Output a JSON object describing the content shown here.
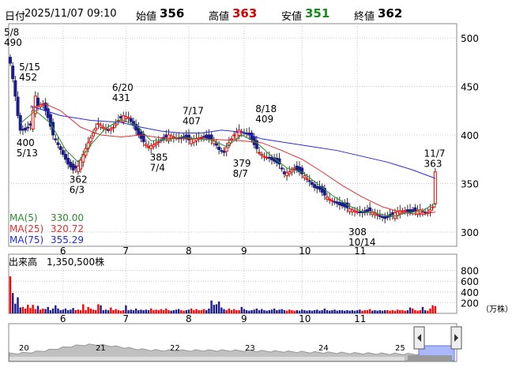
{
  "header": {
    "date_label": "日付",
    "datetime": "2025/11/07 09:10",
    "open_label": "始値",
    "open": "356",
    "high_label": "高値",
    "high": "363",
    "low_label": "安値",
    "low": "351",
    "close_label": "終値",
    "close": "362"
  },
  "legend": {
    "ma5_label": "MA(5)",
    "ma5_value": "330.00",
    "ma25_label": "MA(25)",
    "ma25_value": "320.72",
    "ma75_label": "MA(75)",
    "ma75_value": "355.29"
  },
  "volume_title": "出来高　1,350,500株",
  "volume_unit": "（万株）",
  "colors": {
    "up": "#ff0000",
    "down": "#1c1c8c",
    "ma5": "#2e8b2e",
    "ma25": "#e03030",
    "ma75": "#2a2ae0",
    "grid": "#c8c8c8",
    "nav_fill": "#c0c0c0"
  },
  "chart_data": {
    "type": "candlestick",
    "price_axis": {
      "ticks": [
        300,
        350,
        400,
        450,
        500
      ],
      "ylim": [
        285,
        510
      ]
    },
    "volume_axis": {
      "ticks": [
        200,
        400,
        600,
        800
      ],
      "unit": "（万株）"
    },
    "month_labels": [
      "6",
      "7",
      "8",
      "9",
      "10",
      "11"
    ],
    "annotations": [
      {
        "label": "5/8",
        "value": "490"
      },
      {
        "label": "5/15",
        "value": "452"
      },
      {
        "label": "5/13",
        "value": "400"
      },
      {
        "label": "6/3",
        "value": "362"
      },
      {
        "label": "6/20",
        "value": "431"
      },
      {
        "label": "7/4",
        "value": "385"
      },
      {
        "label": "7/17",
        "value": "407"
      },
      {
        "label": "8/7",
        "value": "379"
      },
      {
        "label": "8/18",
        "value": "409"
      },
      {
        "label": "10/14",
        "value": "308"
      },
      {
        "label": "11/7",
        "value": "363"
      }
    ],
    "close_path": [
      [
        0,
        474
      ],
      [
        1,
        458
      ],
      [
        2,
        440
      ],
      [
        3,
        420
      ],
      [
        4,
        405
      ],
      [
        6,
        405
      ],
      [
        8,
        410
      ],
      [
        9,
        425
      ],
      [
        10,
        440
      ],
      [
        11,
        430
      ],
      [
        13,
        432
      ],
      [
        15,
        418
      ],
      [
        17,
        400
      ],
      [
        19,
        390
      ],
      [
        21,
        380
      ],
      [
        23,
        370
      ],
      [
        25,
        364
      ],
      [
        27,
        368
      ],
      [
        29,
        380
      ],
      [
        31,
        392
      ],
      [
        33,
        402
      ],
      [
        35,
        412
      ],
      [
        37,
        408
      ],
      [
        39,
        405
      ],
      [
        41,
        408
      ],
      [
        43,
        415
      ],
      [
        45,
        420
      ],
      [
        47,
        418
      ],
      [
        49,
        410
      ],
      [
        51,
        400
      ],
      [
        53,
        393
      ],
      [
        55,
        388
      ],
      [
        57,
        390
      ],
      [
        59,
        393
      ],
      [
        61,
        396
      ],
      [
        63,
        400
      ],
      [
        65,
        398
      ],
      [
        67,
        396
      ],
      [
        69,
        397
      ],
      [
        71,
        395
      ],
      [
        73,
        396
      ],
      [
        75,
        397
      ],
      [
        77,
        398
      ],
      [
        79,
        396
      ],
      [
        81,
        394
      ],
      [
        83,
        385
      ],
      [
        85,
        382
      ],
      [
        87,
        392
      ],
      [
        89,
        400
      ],
      [
        91,
        405
      ],
      [
        93,
        402
      ],
      [
        95,
        400
      ],
      [
        97,
        390
      ],
      [
        99,
        382
      ],
      [
        101,
        378
      ],
      [
        103,
        376
      ],
      [
        105,
        373
      ],
      [
        107,
        370
      ],
      [
        109,
        360
      ],
      [
        111,
        362
      ],
      [
        113,
        366
      ],
      [
        115,
        362
      ],
      [
        117,
        358
      ],
      [
        119,
        352
      ],
      [
        121,
        346
      ],
      [
        123,
        344
      ],
      [
        125,
        338
      ],
      [
        127,
        334
      ],
      [
        129,
        331
      ],
      [
        131,
        328
      ],
      [
        133,
        326
      ],
      [
        135,
        324
      ],
      [
        137,
        322
      ],
      [
        139,
        320
      ],
      [
        141,
        320
      ],
      [
        143,
        322
      ],
      [
        145,
        320
      ],
      [
        147,
        316
      ],
      [
        149,
        314
      ],
      [
        151,
        316
      ],
      [
        153,
        320
      ],
      [
        155,
        322
      ],
      [
        157,
        322
      ],
      [
        159,
        320
      ],
      [
        161,
        322
      ],
      [
        163,
        323
      ],
      [
        165,
        320
      ],
      [
        166,
        320
      ],
      [
        168,
        326
      ],
      [
        169,
        362
      ]
    ],
    "ma5": [
      [
        4,
        412
      ],
      [
        10,
        425
      ],
      [
        16,
        412
      ],
      [
        22,
        385
      ],
      [
        27,
        372
      ],
      [
        32,
        390
      ],
      [
        38,
        407
      ],
      [
        44,
        416
      ],
      [
        50,
        410
      ],
      [
        56,
        394
      ],
      [
        62,
        395
      ],
      [
        68,
        398
      ],
      [
        74,
        396
      ],
      [
        80,
        395
      ],
      [
        86,
        388
      ],
      [
        92,
        400
      ],
      [
        98,
        392
      ],
      [
        104,
        378
      ],
      [
        110,
        366
      ],
      [
        116,
        362
      ],
      [
        122,
        350
      ],
      [
        128,
        338
      ],
      [
        134,
        328
      ],
      [
        140,
        321
      ],
      [
        146,
        319
      ],
      [
        152,
        316
      ],
      [
        158,
        320
      ],
      [
        164,
        322
      ],
      [
        169,
        330
      ]
    ],
    "ma25": [
      [
        8,
        428
      ],
      [
        14,
        432
      ],
      [
        20,
        425
      ],
      [
        28,
        408
      ],
      [
        36,
        400
      ],
      [
        44,
        398
      ],
      [
        52,
        400
      ],
      [
        60,
        397
      ],
      [
        68,
        396
      ],
      [
        76,
        396
      ],
      [
        84,
        395
      ],
      [
        92,
        394
      ],
      [
        100,
        392
      ],
      [
        108,
        384
      ],
      [
        116,
        375
      ],
      [
        124,
        362
      ],
      [
        132,
        348
      ],
      [
        140,
        336
      ],
      [
        148,
        326
      ],
      [
        156,
        320
      ],
      [
        164,
        318
      ],
      [
        169,
        320.72
      ]
    ],
    "ma75": [
      [
        8,
        430
      ],
      [
        20,
        420
      ],
      [
        32,
        415
      ],
      [
        44,
        413
      ],
      [
        52,
        408
      ],
      [
        60,
        404
      ],
      [
        68,
        402
      ],
      [
        76,
        402
      ],
      [
        84,
        405
      ],
      [
        92,
        403
      ],
      [
        100,
        396
      ],
      [
        110,
        392
      ],
      [
        120,
        388
      ],
      [
        130,
        384
      ],
      [
        140,
        378
      ],
      [
        150,
        372
      ],
      [
        160,
        364
      ],
      [
        169,
        355.29
      ]
    ],
    "volume": [
      [
        0,
        690
      ],
      [
        1,
        380
      ],
      [
        2,
        180
      ],
      [
        3,
        300
      ],
      [
        4,
        110
      ],
      [
        5,
        120
      ],
      [
        6,
        90
      ],
      [
        7,
        160
      ],
      [
        8,
        100
      ],
      [
        9,
        160
      ],
      [
        10,
        80
      ],
      [
        11,
        140
      ],
      [
        12,
        70
      ],
      [
        13,
        90
      ],
      [
        14,
        80
      ],
      [
        15,
        120
      ],
      [
        16,
        60
      ],
      [
        17,
        90
      ],
      [
        18,
        150
      ],
      [
        19,
        90
      ],
      [
        20,
        60
      ],
      [
        21,
        70
      ],
      [
        22,
        90
      ],
      [
        23,
        60
      ],
      [
        24,
        70
      ],
      [
        25,
        100
      ],
      [
        26,
        60
      ],
      [
        27,
        70
      ],
      [
        28,
        60
      ],
      [
        29,
        170
      ],
      [
        30,
        60
      ],
      [
        31,
        120
      ],
      [
        32,
        90
      ],
      [
        33,
        70
      ],
      [
        34,
        60
      ],
      [
        35,
        170
      ],
      [
        36,
        150
      ],
      [
        37,
        60
      ],
      [
        38,
        70
      ],
      [
        39,
        60
      ],
      [
        40,
        110
      ],
      [
        41,
        60
      ],
      [
        42,
        80
      ],
      [
        43,
        60
      ],
      [
        44,
        50
      ],
      [
        45,
        60
      ],
      [
        46,
        150
      ],
      [
        47,
        60
      ],
      [
        48,
        70
      ],
      [
        49,
        60
      ],
      [
        50,
        90
      ],
      [
        51,
        60
      ],
      [
        52,
        70
      ],
      [
        53,
        60
      ],
      [
        54,
        70
      ],
      [
        55,
        60
      ],
      [
        56,
        90
      ],
      [
        57,
        60
      ],
      [
        58,
        70
      ],
      [
        59,
        60
      ],
      [
        60,
        80
      ],
      [
        61,
        60
      ],
      [
        62,
        90
      ],
      [
        63,
        60
      ],
      [
        64,
        50
      ],
      [
        65,
        60
      ],
      [
        66,
        70
      ],
      [
        67,
        80
      ],
      [
        68,
        60
      ],
      [
        69,
        50
      ],
      [
        70,
        60
      ],
      [
        71,
        70
      ],
      [
        72,
        90
      ],
      [
        73,
        60
      ],
      [
        74,
        80
      ],
      [
        75,
        60
      ],
      [
        76,
        60
      ],
      [
        77,
        80
      ],
      [
        78,
        60
      ],
      [
        79,
        90
      ],
      [
        80,
        240
      ],
      [
        81,
        160
      ],
      [
        82,
        170
      ],
      [
        83,
        220
      ],
      [
        84,
        110
      ],
      [
        85,
        80
      ],
      [
        86,
        60
      ],
      [
        87,
        90
      ],
      [
        88,
        60
      ],
      [
        89,
        80
      ],
      [
        90,
        60
      ],
      [
        91,
        60
      ],
      [
        92,
        120
      ],
      [
        93,
        80
      ],
      [
        94,
        60
      ],
      [
        95,
        50
      ],
      [
        96,
        60
      ],
      [
        97,
        70
      ],
      [
        98,
        90
      ],
      [
        99,
        60
      ],
      [
        100,
        80
      ],
      [
        101,
        60
      ],
      [
        102,
        50
      ],
      [
        103,
        60
      ],
      [
        104,
        70
      ],
      [
        105,
        90
      ],
      [
        106,
        60
      ],
      [
        107,
        70
      ],
      [
        108,
        80
      ],
      [
        109,
        60
      ],
      [
        110,
        50
      ],
      [
        111,
        70
      ],
      [
        112,
        60
      ],
      [
        113,
        50
      ],
      [
        114,
        60
      ],
      [
        115,
        50
      ],
      [
        116,
        70
      ],
      [
        117,
        60
      ],
      [
        118,
        50
      ],
      [
        119,
        60
      ],
      [
        120,
        50
      ],
      [
        121,
        60
      ],
      [
        122,
        70
      ],
      [
        123,
        50
      ],
      [
        124,
        60
      ],
      [
        125,
        90
      ],
      [
        126,
        60
      ],
      [
        127,
        50
      ],
      [
        128,
        60
      ],
      [
        129,
        70
      ],
      [
        130,
        50
      ],
      [
        131,
        60
      ],
      [
        132,
        60
      ],
      [
        133,
        50
      ],
      [
        134,
        60
      ],
      [
        135,
        50
      ],
      [
        136,
        60
      ],
      [
        137,
        50
      ],
      [
        138,
        60
      ],
      [
        139,
        70
      ],
      [
        140,
        50
      ],
      [
        141,
        60
      ],
      [
        142,
        60
      ],
      [
        143,
        80
      ],
      [
        144,
        50
      ],
      [
        145,
        60
      ],
      [
        146,
        50
      ],
      [
        147,
        60
      ],
      [
        148,
        50
      ],
      [
        149,
        60
      ],
      [
        150,
        60
      ],
      [
        151,
        50
      ],
      [
        152,
        60
      ],
      [
        153,
        50
      ],
      [
        154,
        70
      ],
      [
        155,
        60
      ],
      [
        156,
        60
      ],
      [
        157,
        50
      ],
      [
        158,
        60
      ],
      [
        159,
        110
      ],
      [
        160,
        90
      ],
      [
        161,
        60
      ],
      [
        162,
        50
      ],
      [
        163,
        60
      ],
      [
        164,
        120
      ],
      [
        165,
        60
      ],
      [
        166,
        50
      ],
      [
        167,
        90
      ],
      [
        168,
        150
      ],
      [
        169,
        135
      ]
    ],
    "navigator": {
      "labels": [
        "20",
        "21",
        "22",
        "23",
        "24",
        "25"
      ]
    }
  }
}
